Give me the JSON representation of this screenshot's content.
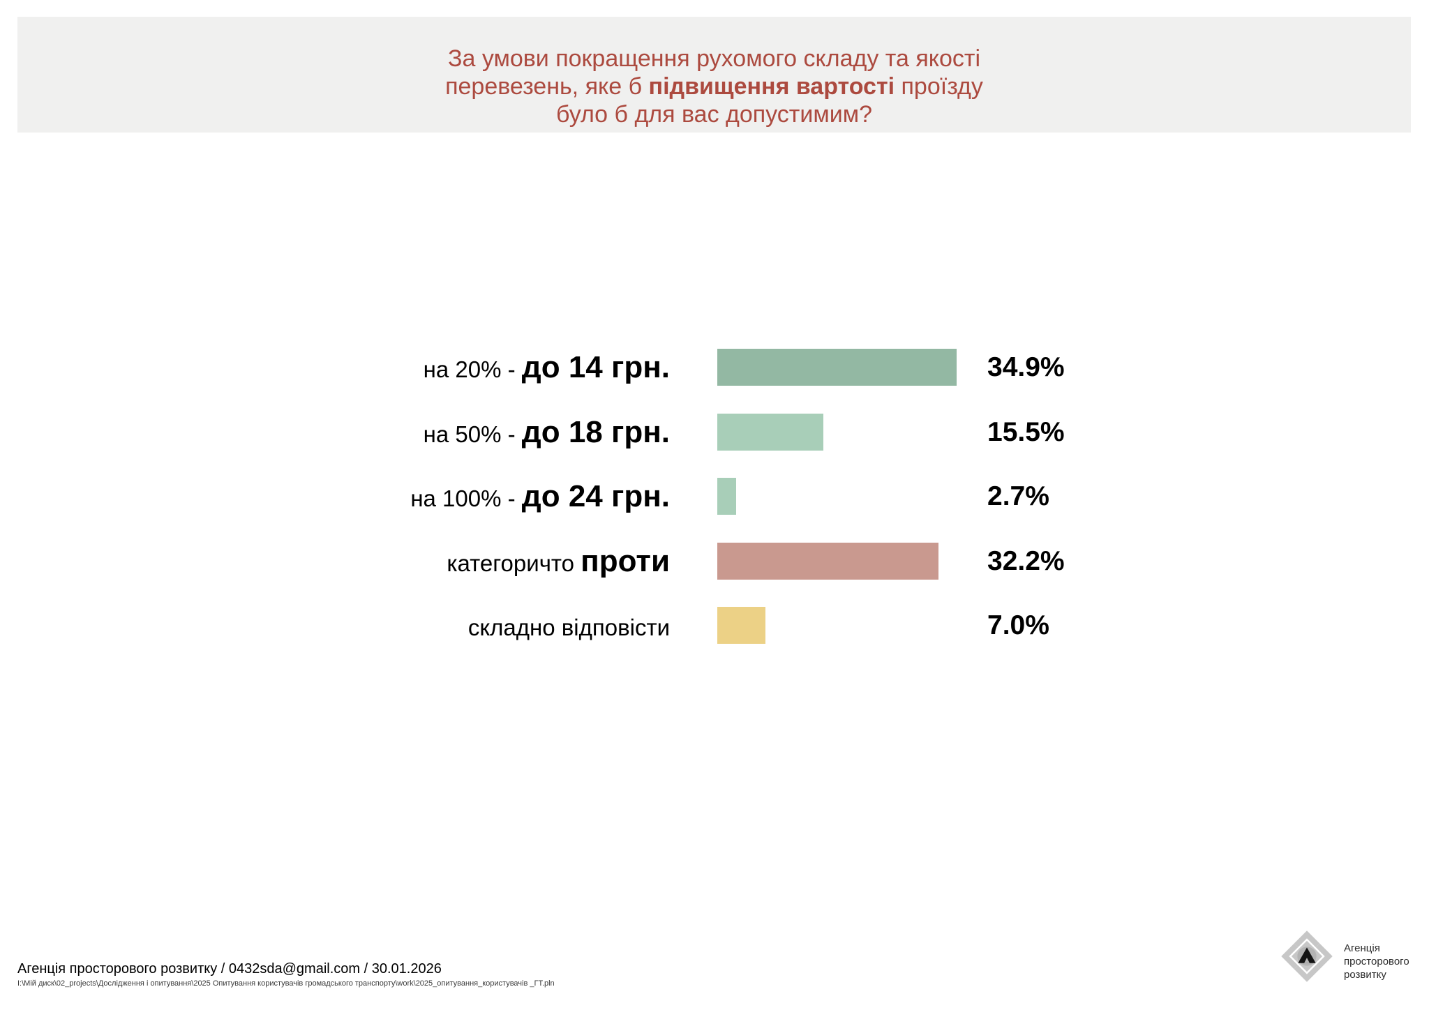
{
  "title": {
    "line1": "За умови покращення рухомого складу та якості",
    "line2_pre": "перевезень, яке б ",
    "line2_bold": "підвищення вартості",
    "line2_post": " проїзду",
    "line3": "було б для вас допустимим?",
    "text_color": "#ac4a3f",
    "background": "#f0f0ef"
  },
  "chart_data": {
    "type": "bar",
    "orientation": "horizontal",
    "unit": "%",
    "xlim": [
      0,
      35
    ],
    "grid": false,
    "legend": false,
    "categories": [
      "на 20% - до 14 грн.",
      "на 50% - до 18 грн.",
      "на 100% - до 24 грн.",
      "категоричто проти",
      "складно відповісти"
    ],
    "values": [
      34.9,
      15.5,
      2.7,
      32.2,
      7.0
    ],
    "rows": [
      {
        "label_prefix": "на 20% - ",
        "label_bold": "до 14 грн.",
        "value": 34.9,
        "value_label": "34.9%",
        "color": "#93b8a3"
      },
      {
        "label_prefix": "на 50% - ",
        "label_bold": "до 18 грн.",
        "value": 15.5,
        "value_label": "15.5%",
        "color": "#a8ceb8"
      },
      {
        "label_prefix": "на 100% - ",
        "label_bold": "до 24 грн.",
        "value": 2.7,
        "value_label": "2.7%",
        "color": "#a8ceb8"
      },
      {
        "label_prefix": "категоричто ",
        "label_bold": "проти",
        "value": 32.2,
        "value_label": "32.2%",
        "color": "#c9998f"
      },
      {
        "label_prefix": "складно відповісти",
        "label_bold": "",
        "value": 7.0,
        "value_label": "7.0%",
        "color": "#ecd186"
      }
    ]
  },
  "footer": {
    "credit": "Агенція просторового розвитку / 0432sda@gmail.com / 30.01.2026",
    "path": "I:\\Мій диск\\02_projects\\Дослідження і опитування\\2025 Опитування користувачів громадського транспорту\\work\\2025_опитування_користувачів _ГТ.pln"
  },
  "logo": {
    "line1": "Агенція",
    "line2": "просторового",
    "line3": "розвитку"
  }
}
